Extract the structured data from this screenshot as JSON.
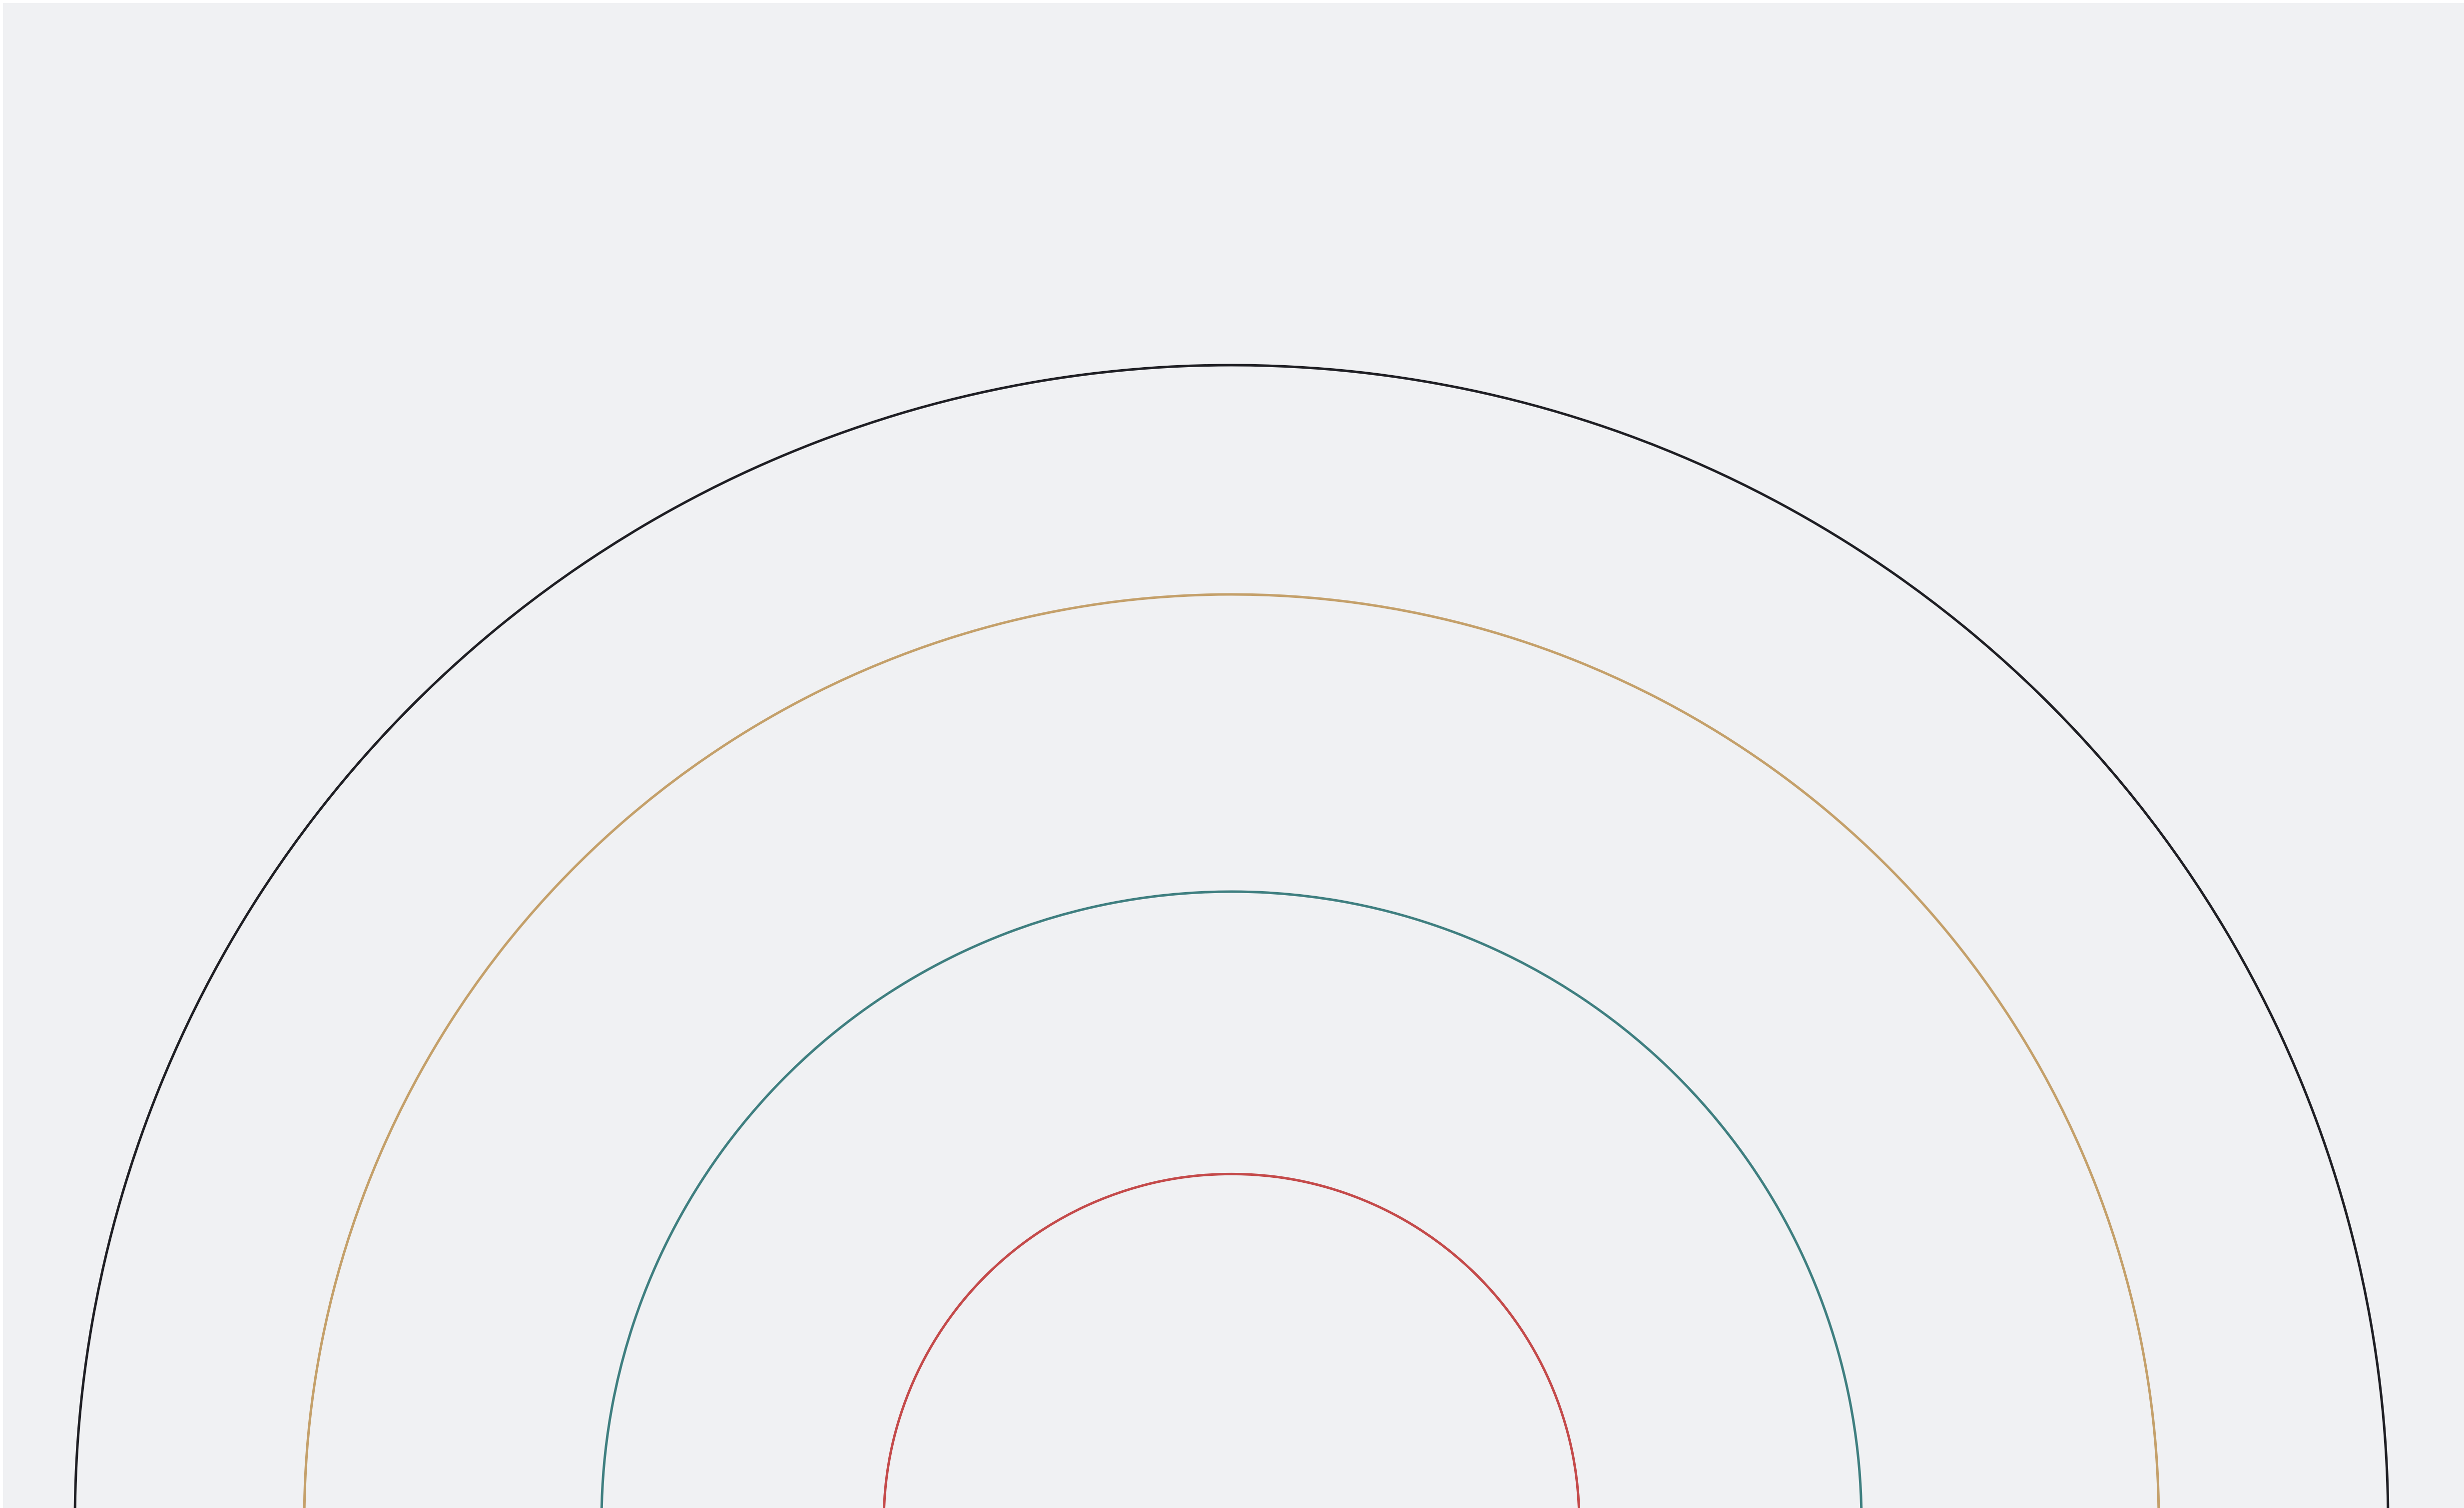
{
  "background_color": "#f0f1f3",
  "arcs": [
    {
      "id": "outer-arc",
      "color": "#1f1f24"
    },
    {
      "id": "second-arc",
      "color": "#c4a06a"
    },
    {
      "id": "third-arc",
      "color": "#3f7f80"
    },
    {
      "id": "inner-arc",
      "color": "#c44a4a"
    }
  ]
}
